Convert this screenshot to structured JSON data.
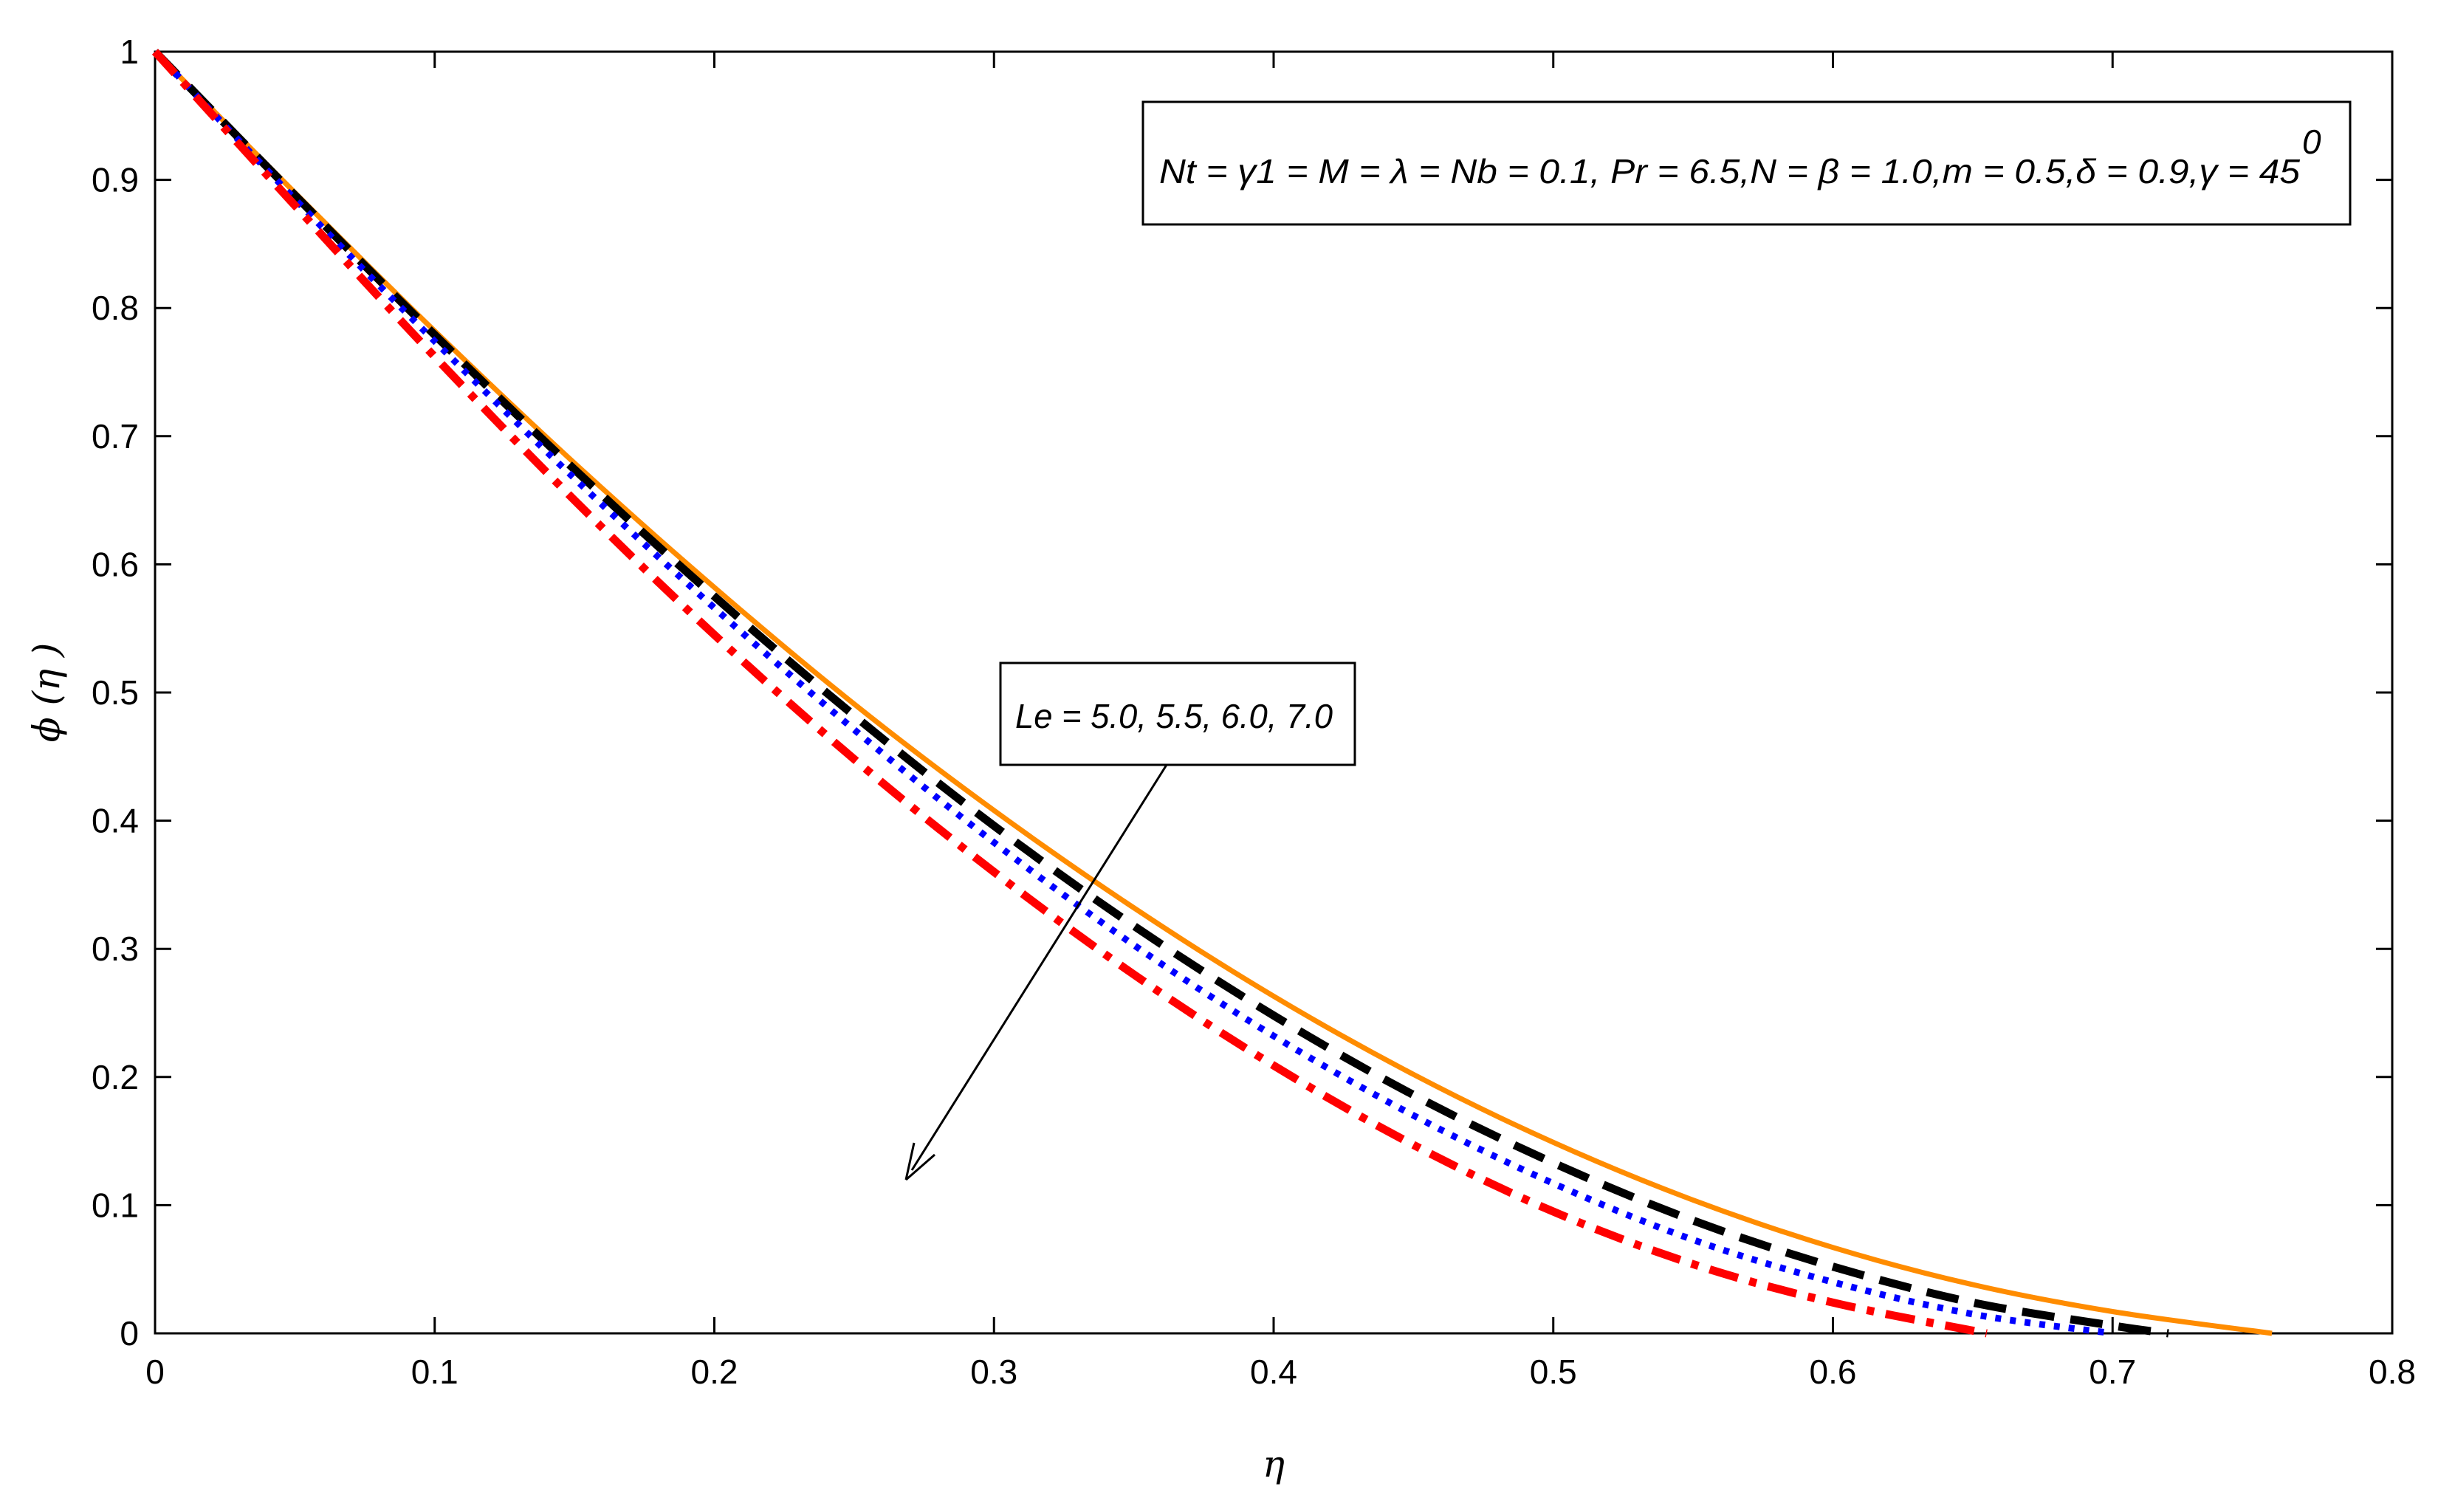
{
  "chart_data": {
    "type": "line",
    "xlabel": "η",
    "ylabel": "ϕ (η )",
    "xlim": [
      0,
      0.8
    ],
    "ylim": [
      0,
      1
    ],
    "xticks": [
      "0",
      "0.1",
      "0.2",
      "0.3",
      "0.4",
      "0.5",
      "0.6",
      "0.7",
      "0.8"
    ],
    "yticks": [
      "0",
      "0.1",
      "0.2",
      "0.3",
      "0.4",
      "0.5",
      "0.6",
      "0.7",
      "0.8",
      "0.9",
      "1"
    ],
    "grid": false,
    "parameter_box": "Nt = γ1 = M = λ = Nb = 0.1, Pr = 6.5,N = β = 1.0,m = 0.5,δ = 0.9,γ = 45",
    "parameter_box_superscript": "0",
    "annotation": "Le = 5.0, 5.5, 6.0, 7.0",
    "series": [
      {
        "color": "#FF8C00",
        "style": "solid",
        "x": [
          0,
          0.05,
          0.1,
          0.15,
          0.2,
          0.25,
          0.3,
          0.35,
          0.4,
          0.45,
          0.5,
          0.55,
          0.6,
          0.65,
          0.7,
          0.757
        ],
        "y": [
          1,
          0.89,
          0.782,
          0.679,
          0.582,
          0.491,
          0.408,
          0.332,
          0.263,
          0.202,
          0.149,
          0.104,
          0.067,
          0.038,
          0.017,
          0
        ]
      },
      {
        "color": "#000000",
        "style": "dashed",
        "x": [
          0,
          0.05,
          0.1,
          0.15,
          0.2,
          0.25,
          0.3,
          0.35,
          0.4,
          0.45,
          0.5,
          0.55,
          0.6,
          0.65,
          0.7,
          0.72
        ],
        "y": [
          1,
          0.888,
          0.779,
          0.674,
          0.575,
          0.482,
          0.396,
          0.318,
          0.248,
          0.186,
          0.133,
          0.088,
          0.052,
          0.024,
          0.006,
          0
        ]
      },
      {
        "color": "#0000FF",
        "style": "dotted",
        "x": [
          0,
          0.05,
          0.1,
          0.15,
          0.2,
          0.25,
          0.3,
          0.35,
          0.4,
          0.45,
          0.5,
          0.55,
          0.6,
          0.65,
          0.7
        ],
        "y": [
          1,
          0.885,
          0.774,
          0.667,
          0.566,
          0.471,
          0.383,
          0.303,
          0.232,
          0.17,
          0.117,
          0.073,
          0.04,
          0.015,
          0
        ]
      },
      {
        "color": "#FF0000",
        "style": "dashdot",
        "x": [
          0,
          0.05,
          0.1,
          0.15,
          0.2,
          0.25,
          0.3,
          0.35,
          0.4,
          0.45,
          0.5,
          0.55,
          0.6,
          0.655
        ],
        "y": [
          1,
          0.88,
          0.762,
          0.65,
          0.545,
          0.448,
          0.36,
          0.28,
          0.209,
          0.147,
          0.095,
          0.054,
          0.024,
          0
        ]
      }
    ]
  }
}
